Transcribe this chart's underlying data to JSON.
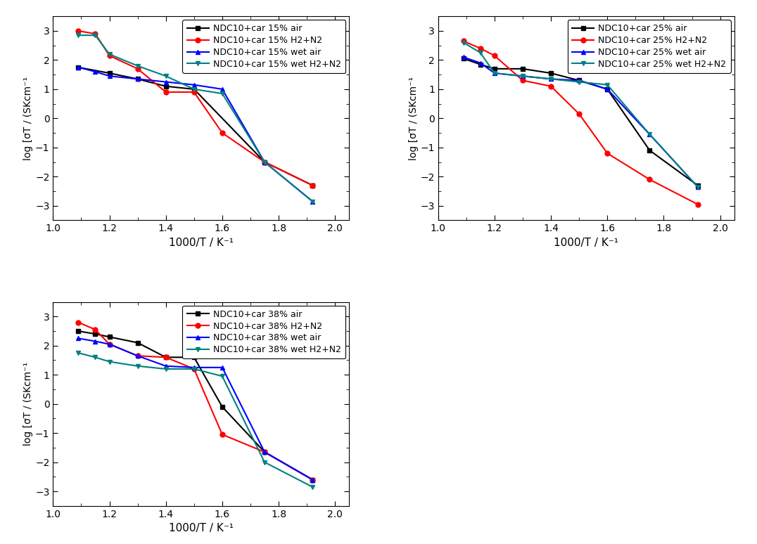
{
  "subplot1": {
    "xlabel": "1000/T / K⁻¹",
    "ylabel": "log [σ·T / (SKcm⁻¹",
    "xlim": [
      1.0,
      2.05
    ],
    "ylim": [
      -3.5,
      3.5
    ],
    "yticks": [
      -3,
      -2,
      -1,
      0,
      1,
      2,
      3
    ],
    "xticks": [
      1.0,
      1.2,
      1.4,
      1.6,
      1.8,
      2.0
    ],
    "series": [
      {
        "label": "NDC10+car 15% air",
        "color": "#000000",
        "marker": "s",
        "x": [
          1.09,
          1.2,
          1.3,
          1.4,
          1.5,
          1.75,
          1.92
        ],
        "y": [
          1.75,
          1.55,
          1.35,
          1.1,
          1.0,
          -1.5,
          -2.3
        ]
      },
      {
        "label": "NDC10+car 15% H2+N2",
        "color": "#ff0000",
        "marker": "o",
        "x": [
          1.09,
          1.15,
          1.2,
          1.3,
          1.4,
          1.5,
          1.6,
          1.75,
          1.92
        ],
        "y": [
          3.0,
          2.9,
          2.15,
          1.7,
          0.9,
          0.9,
          -0.5,
          -1.5,
          -2.3
        ]
      },
      {
        "label": "NDC10+car 15% wet air",
        "color": "#0000ff",
        "marker": "^",
        "x": [
          1.09,
          1.15,
          1.2,
          1.3,
          1.4,
          1.5,
          1.6,
          1.75,
          1.92
        ],
        "y": [
          1.75,
          1.6,
          1.45,
          1.35,
          1.25,
          1.15,
          1.0,
          -1.5,
          -2.85
        ]
      },
      {
        "label": "NDC10+car 15% wet H2+N2",
        "color": "#008080",
        "marker": "v",
        "x": [
          1.09,
          1.15,
          1.2,
          1.3,
          1.4,
          1.5,
          1.6,
          1.75,
          1.92
        ],
        "y": [
          2.85,
          2.85,
          2.2,
          1.8,
          1.45,
          1.0,
          0.85,
          -1.5,
          -2.85
        ]
      }
    ]
  },
  "subplot2": {
    "xlabel": "1000/T / K⁻¹",
    "ylabel": "log [σ·T / (SKcm⁻¹",
    "xlim": [
      1.0,
      2.05
    ],
    "ylim": [
      -3.5,
      3.5
    ],
    "yticks": [
      -3,
      -2,
      -1,
      0,
      1,
      2,
      3
    ],
    "xticks": [
      1.0,
      1.2,
      1.4,
      1.6,
      1.8,
      2.0
    ],
    "series": [
      {
        "label": "NDC10+car 25% air",
        "color": "#000000",
        "marker": "s",
        "x": [
          1.09,
          1.15,
          1.2,
          1.3,
          1.4,
          1.5,
          1.6,
          1.75,
          1.92
        ],
        "y": [
          2.05,
          1.85,
          1.7,
          1.7,
          1.55,
          1.3,
          1.0,
          -1.1,
          -2.3
        ]
      },
      {
        "label": "NDC10+car 25% H2+N2",
        "color": "#ff0000",
        "marker": "o",
        "x": [
          1.09,
          1.15,
          1.2,
          1.3,
          1.4,
          1.5,
          1.6,
          1.75,
          1.92
        ],
        "y": [
          2.65,
          2.4,
          2.15,
          1.3,
          1.1,
          0.15,
          -1.2,
          -2.1,
          -2.95
        ]
      },
      {
        "label": "NDC10+car 25% wet air",
        "color": "#0000ff",
        "marker": "^",
        "x": [
          1.09,
          1.15,
          1.2,
          1.3,
          1.4,
          1.5,
          1.6,
          1.75,
          1.92
        ],
        "y": [
          2.1,
          1.9,
          1.55,
          1.45,
          1.35,
          1.3,
          1.0,
          -0.55,
          -2.35
        ]
      },
      {
        "label": "NDC10+car 25% wet H2+N2",
        "color": "#008080",
        "marker": "v",
        "x": [
          1.09,
          1.15,
          1.2,
          1.3,
          1.4,
          1.5,
          1.6,
          1.75,
          1.92
        ],
        "y": [
          2.6,
          2.25,
          1.55,
          1.45,
          1.35,
          1.25,
          1.15,
          -0.55,
          -2.35
        ]
      }
    ]
  },
  "subplot3": {
    "xlabel": "1000/T / K⁻¹",
    "ylabel": "log [σ·T / (SKcm⁻¹",
    "xlim": [
      1.0,
      2.05
    ],
    "ylim": [
      -3.5,
      3.5
    ],
    "yticks": [
      -3,
      -2,
      -1,
      0,
      1,
      2,
      3
    ],
    "xticks": [
      1.0,
      1.2,
      1.4,
      1.6,
      1.8,
      2.0
    ],
    "series": [
      {
        "label": "NDC10+car 38% air",
        "color": "#000000",
        "marker": "s",
        "x": [
          1.09,
          1.15,
          1.2,
          1.3,
          1.4,
          1.5,
          1.6,
          1.75,
          1.92
        ],
        "y": [
          2.5,
          2.4,
          2.3,
          2.1,
          1.6,
          1.6,
          -0.1,
          -1.65,
          -2.6
        ]
      },
      {
        "label": "NDC10+car 38% H2+N2",
        "color": "#ff0000",
        "marker": "o",
        "x": [
          1.09,
          1.15,
          1.2,
          1.3,
          1.4,
          1.5,
          1.6,
          1.75,
          1.92
        ],
        "y": [
          2.8,
          2.55,
          2.05,
          1.65,
          1.6,
          1.2,
          -1.05,
          -1.65,
          -2.6
        ]
      },
      {
        "label": "NDC10+car 38% wet air",
        "color": "#0000ff",
        "marker": "^",
        "x": [
          1.09,
          1.15,
          1.2,
          1.3,
          1.4,
          1.5,
          1.6,
          1.75,
          1.92
        ],
        "y": [
          2.25,
          2.15,
          2.05,
          1.65,
          1.3,
          1.25,
          1.25,
          -1.65,
          -2.6
        ]
      },
      {
        "label": "NDC10+car 38% wet H2+N2",
        "color": "#008080",
        "marker": "v",
        "x": [
          1.09,
          1.15,
          1.2,
          1.3,
          1.4,
          1.5,
          1.6,
          1.75,
          1.92
        ],
        "y": [
          1.75,
          1.6,
          1.45,
          1.3,
          1.2,
          1.2,
          0.95,
          -2.0,
          -2.85
        ]
      }
    ]
  },
  "bg_color": "#ffffff",
  "linewidth": 1.5,
  "markersize": 5,
  "legend_fontsize": 9,
  "axis_fontsize": 11,
  "ylabel_fontsize": 10,
  "tick_labelsize": 10
}
